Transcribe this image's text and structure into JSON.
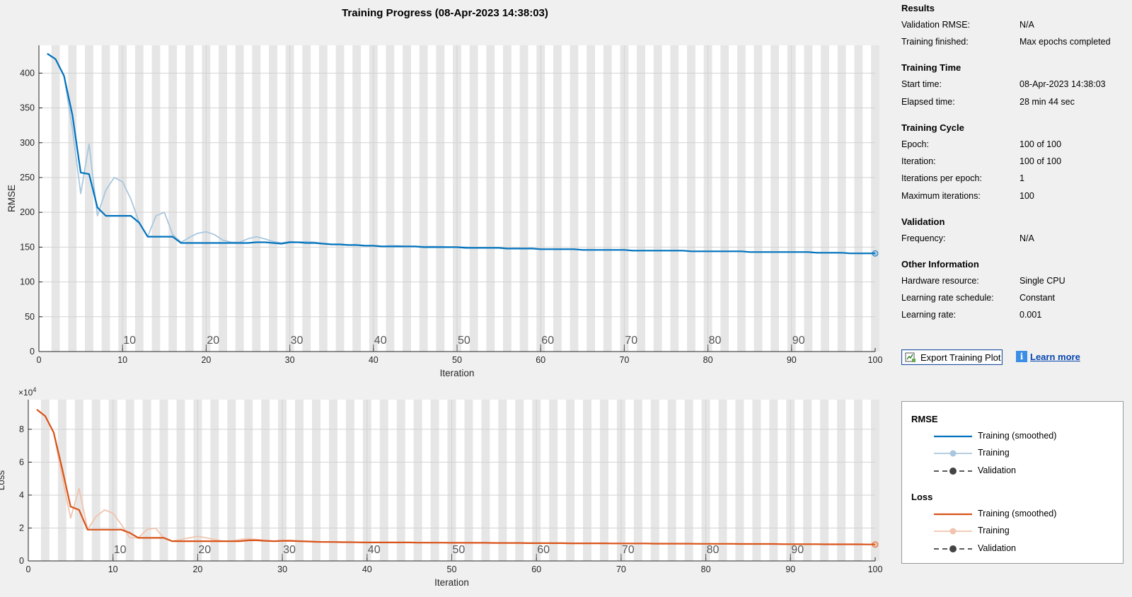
{
  "window": {
    "title": "Training Progress (08-Apr-2023 14:38:03)"
  },
  "colors": {
    "rmse_smoothed": "#0072BD",
    "rmse_raw": "#A9C7DE",
    "loss_smoothed": "#D95319",
    "loss_raw": "#F0C4AE",
    "validation": "#444444",
    "epoch_band": "#E6E6E6"
  },
  "panel": {
    "sections": [
      {
        "title": "Results",
        "rows": [
          {
            "label": "Validation RMSE:",
            "value": "N/A"
          },
          {
            "label": "Training finished:",
            "value": "Max epochs completed"
          }
        ]
      },
      {
        "title": "Training Time",
        "rows": [
          {
            "label": "Start time:",
            "value": "08-Apr-2023 14:38:03"
          },
          {
            "label": "Elapsed time:",
            "value": "28 min 44 sec"
          }
        ]
      },
      {
        "title": "Training Cycle",
        "rows": [
          {
            "label": "Epoch:",
            "value": "100 of 100"
          },
          {
            "label": "Iteration:",
            "value": "100 of 100"
          },
          {
            "label": "Iterations per epoch:",
            "value": "1"
          },
          {
            "label": "Maximum iterations:",
            "value": "100"
          }
        ]
      },
      {
        "title": "Validation",
        "rows": [
          {
            "label": "Frequency:",
            "value": "N/A"
          }
        ]
      },
      {
        "title": "Other Information",
        "rows": [
          {
            "label": "Hardware resource:",
            "value": "Single CPU"
          },
          {
            "label": "Learning rate schedule:",
            "value": "Constant"
          },
          {
            "label": "Learning rate:",
            "value": "0.001"
          }
        ]
      }
    ],
    "export_button": "Export Training Plot",
    "learn_more": "Learn more"
  },
  "legend": {
    "groups": [
      {
        "title": "RMSE",
        "items": [
          {
            "label": "Training (smoothed)",
            "style": "smoothed",
            "color": "#0072BD"
          },
          {
            "label": "Training",
            "style": "raw",
            "color": "#A9C7DE"
          },
          {
            "label": "Validation",
            "style": "validation",
            "color": "#444444"
          }
        ]
      },
      {
        "title": "Loss",
        "items": [
          {
            "label": "Training (smoothed)",
            "style": "smoothed",
            "color": "#D95319"
          },
          {
            "label": "Training",
            "style": "raw",
            "color": "#F0C4AE"
          },
          {
            "label": "Validation",
            "style": "validation",
            "color": "#444444"
          }
        ]
      }
    ]
  },
  "chart_data": [
    {
      "type": "line",
      "xlabel": "Iteration",
      "ylabel": "RMSE",
      "xlim": [
        0,
        100
      ],
      "ylim": [
        0,
        440
      ],
      "xticks": [
        0,
        10,
        20,
        30,
        40,
        50,
        60,
        70,
        80,
        90,
        100
      ],
      "yticks": [
        0,
        50,
        100,
        150,
        200,
        250,
        300,
        350,
        400
      ],
      "epoch_labels": [
        10,
        20,
        30,
        40,
        50,
        60,
        70,
        80,
        90
      ],
      "grid": true,
      "series": [
        {
          "name": "Training",
          "role": "raw",
          "x": [
            1,
            2,
            3,
            4,
            5,
            6,
            7,
            8,
            9,
            10,
            11,
            12,
            13,
            14,
            15,
            16,
            17,
            18,
            19,
            20,
            21,
            22,
            23,
            24,
            25,
            26,
            27,
            28,
            29,
            30,
            31,
            32,
            33,
            34,
            35,
            36,
            37,
            38,
            39,
            40,
            41,
            42,
            43,
            44,
            45,
            46,
            47,
            48,
            49,
            50,
            51,
            52,
            53,
            54,
            55,
            56,
            57,
            58,
            59,
            60,
            61,
            62,
            63,
            64,
            65,
            66,
            67,
            68,
            69,
            70,
            71,
            72,
            73,
            74,
            75,
            76,
            77,
            78,
            79,
            80,
            81,
            82,
            83,
            84,
            85,
            86,
            87,
            88,
            89,
            90,
            91,
            92,
            93,
            94,
            95,
            96,
            97,
            98,
            99,
            100
          ],
          "y": [
            428,
            420,
            396,
            320,
            227,
            298,
            195,
            232,
            250,
            244,
            219,
            185,
            165,
            195,
            200,
            168,
            157,
            164,
            170,
            172,
            168,
            160,
            157,
            157,
            162,
            165,
            162,
            158,
            156,
            158,
            157,
            158,
            157,
            155,
            154,
            154,
            153,
            153,
            152,
            152,
            151,
            152,
            152,
            151,
            151,
            151,
            151,
            151,
            150,
            150,
            150,
            149,
            149,
            149,
            149,
            148,
            148,
            148,
            148,
            147,
            147,
            147,
            147,
            147,
            146,
            146,
            146,
            146,
            146,
            146,
            145,
            145,
            145,
            145,
            145,
            145,
            145,
            144,
            144,
            144,
            144,
            144,
            144,
            144,
            143,
            143,
            143,
            143,
            143,
            143,
            143,
            143,
            142,
            142,
            142,
            142,
            141,
            141,
            141,
            141
          ]
        },
        {
          "name": "Training (smoothed)",
          "role": "smoothed",
          "x": [
            1,
            2,
            3,
            4,
            5,
            6,
            7,
            8,
            9,
            10,
            11,
            12,
            13,
            14,
            15,
            16,
            17,
            18,
            19,
            20,
            21,
            22,
            23,
            24,
            25,
            26,
            27,
            28,
            29,
            30,
            31,
            32,
            33,
            34,
            35,
            36,
            37,
            38,
            39,
            40,
            41,
            42,
            43,
            44,
            45,
            46,
            47,
            48,
            49,
            50,
            51,
            52,
            53,
            54,
            55,
            56,
            57,
            58,
            59,
            60,
            61,
            62,
            63,
            64,
            65,
            66,
            67,
            68,
            69,
            70,
            71,
            72,
            73,
            74,
            75,
            76,
            77,
            78,
            79,
            80,
            81,
            82,
            83,
            84,
            85,
            86,
            87,
            88,
            89,
            90,
            91,
            92,
            93,
            94,
            95,
            96,
            97,
            98,
            99,
            100
          ],
          "y": [
            428,
            420,
            396,
            340,
            257,
            255,
            207,
            195,
            195,
            195,
            195,
            185,
            165,
            165,
            165,
            165,
            156,
            156,
            156,
            156,
            156,
            156,
            156,
            156,
            156,
            157,
            157,
            156,
            155,
            157,
            157,
            156,
            156,
            155,
            154,
            154,
            153,
            153,
            152,
            152,
            151,
            151,
            151,
            151,
            151,
            150,
            150,
            150,
            150,
            150,
            149,
            149,
            149,
            149,
            149,
            148,
            148,
            148,
            148,
            147,
            147,
            147,
            147,
            147,
            146,
            146,
            146,
            146,
            146,
            146,
            145,
            145,
            145,
            145,
            145,
            145,
            145,
            144,
            144,
            144,
            144,
            144,
            144,
            144,
            143,
            143,
            143,
            143,
            143,
            143,
            143,
            143,
            142,
            142,
            142,
            142,
            141,
            141,
            141,
            141
          ]
        }
      ]
    },
    {
      "type": "line",
      "xlabel": "Iteration",
      "ylabel": "Loss",
      "y_exponent": "×10^4",
      "xlim": [
        0,
        100
      ],
      "ylim": [
        0,
        9.8
      ],
      "xticks": [
        0,
        10,
        20,
        30,
        40,
        50,
        60,
        70,
        80,
        90,
        100
      ],
      "yticks": [
        0,
        2,
        4,
        6,
        8
      ],
      "epoch_labels": [
        10,
        20,
        30,
        40,
        50,
        60,
        70,
        80,
        90
      ],
      "grid": true,
      "series": [
        {
          "name": "Training",
          "role": "raw",
          "x": [
            1,
            2,
            3,
            4,
            5,
            6,
            7,
            8,
            9,
            10,
            11,
            12,
            13,
            14,
            15,
            16,
            17,
            18,
            19,
            20,
            21,
            22,
            23,
            24,
            25,
            26,
            27,
            28,
            29,
            30,
            31,
            32,
            33,
            34,
            35,
            36,
            37,
            38,
            39,
            40,
            41,
            42,
            43,
            44,
            45,
            46,
            47,
            48,
            49,
            50,
            51,
            52,
            53,
            54,
            55,
            56,
            57,
            58,
            59,
            60,
            61,
            62,
            63,
            64,
            65,
            66,
            67,
            68,
            69,
            70,
            71,
            72,
            73,
            74,
            75,
            76,
            77,
            78,
            79,
            80,
            81,
            82,
            83,
            84,
            85,
            86,
            87,
            88,
            89,
            90,
            91,
            92,
            93,
            94,
            95,
            96,
            97,
            98,
            99,
            100
          ],
          "y": [
            9.2,
            8.8,
            7.8,
            5.1,
            2.6,
            4.4,
            1.9,
            2.7,
            3.1,
            2.9,
            2.2,
            1.4,
            1.4,
            1.9,
            2.0,
            1.4,
            1.2,
            1.3,
            1.4,
            1.5,
            1.4,
            1.3,
            1.2,
            1.2,
            1.3,
            1.35,
            1.3,
            1.25,
            1.2,
            1.25,
            1.25,
            1.2,
            1.2,
            1.18,
            1.15,
            1.15,
            1.15,
            1.14,
            1.13,
            1.12,
            1.12,
            1.12,
            1.12,
            1.12,
            1.12,
            1.12,
            1.11,
            1.11,
            1.11,
            1.11,
            1.1,
            1.1,
            1.1,
            1.1,
            1.1,
            1.09,
            1.09,
            1.09,
            1.09,
            1.08,
            1.08,
            1.08,
            1.08,
            1.08,
            1.07,
            1.07,
            1.07,
            1.07,
            1.07,
            1.06,
            1.06,
            1.06,
            1.06,
            1.06,
            1.05,
            1.05,
            1.05,
            1.05,
            1.05,
            1.04,
            1.04,
            1.04,
            1.04,
            1.04,
            1.03,
            1.03,
            1.03,
            1.03,
            1.03,
            1.02,
            1.02,
            1.02,
            1.02,
            1.02,
            1.01,
            1.01,
            1.01,
            1.01,
            1.01,
            1.0
          ]
        },
        {
          "name": "Training (smoothed)",
          "role": "smoothed",
          "x": [
            1,
            2,
            3,
            4,
            5,
            6,
            7,
            8,
            9,
            10,
            11,
            12,
            13,
            14,
            15,
            16,
            17,
            18,
            19,
            20,
            21,
            22,
            23,
            24,
            25,
            26,
            27,
            28,
            29,
            30,
            31,
            32,
            33,
            34,
            35,
            36,
            37,
            38,
            39,
            40,
            41,
            42,
            43,
            44,
            45,
            46,
            47,
            48,
            49,
            50,
            51,
            52,
            53,
            54,
            55,
            56,
            57,
            58,
            59,
            60,
            61,
            62,
            63,
            64,
            65,
            66,
            67,
            68,
            69,
            70,
            71,
            72,
            73,
            74,
            75,
            76,
            77,
            78,
            79,
            80,
            81,
            82,
            83,
            84,
            85,
            86,
            87,
            88,
            89,
            90,
            91,
            92,
            93,
            94,
            95,
            96,
            97,
            98,
            99,
            100
          ],
          "y": [
            9.2,
            8.8,
            7.8,
            5.6,
            3.3,
            3.1,
            1.9,
            1.9,
            1.9,
            1.9,
            1.9,
            1.7,
            1.4,
            1.4,
            1.4,
            1.4,
            1.2,
            1.2,
            1.2,
            1.2,
            1.2,
            1.2,
            1.2,
            1.2,
            1.2,
            1.25,
            1.25,
            1.22,
            1.2,
            1.22,
            1.22,
            1.2,
            1.18,
            1.16,
            1.15,
            1.15,
            1.14,
            1.14,
            1.13,
            1.12,
            1.12,
            1.12,
            1.12,
            1.12,
            1.12,
            1.11,
            1.11,
            1.11,
            1.11,
            1.1,
            1.1,
            1.1,
            1.1,
            1.1,
            1.09,
            1.09,
            1.09,
            1.09,
            1.08,
            1.08,
            1.08,
            1.08,
            1.08,
            1.07,
            1.07,
            1.07,
            1.07,
            1.07,
            1.06,
            1.06,
            1.06,
            1.06,
            1.06,
            1.05,
            1.05,
            1.05,
            1.05,
            1.05,
            1.04,
            1.04,
            1.04,
            1.04,
            1.04,
            1.03,
            1.03,
            1.03,
            1.03,
            1.03,
            1.02,
            1.02,
            1.02,
            1.02,
            1.02,
            1.01,
            1.01,
            1.01,
            1.01,
            1.01,
            1.0,
            1.0
          ]
        }
      ]
    }
  ]
}
